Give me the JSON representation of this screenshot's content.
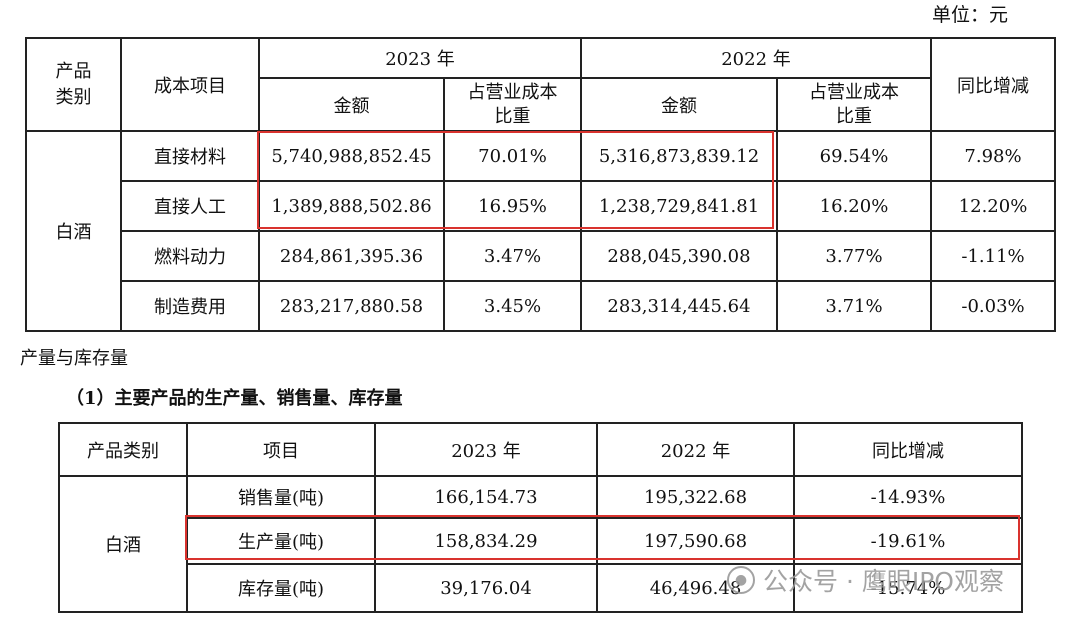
{
  "unit_label": "单位：元",
  "cost_table": {
    "header": {
      "category": "产品类别",
      "cost_item": "成本项目",
      "year_2023": "2023 年",
      "year_2022": "2022 年",
      "amount": "金额",
      "ratio": "占营业成本比重",
      "yoy": "同比增减"
    },
    "category": "白酒",
    "rows": [
      {
        "item": "直接材料",
        "amount_2023": "5,740,988,852.45",
        "ratio_2023": "70.01%",
        "amount_2022": "5,316,873,839.12",
        "ratio_2022": "69.54%",
        "yoy": "7.98%"
      },
      {
        "item": "直接人工",
        "amount_2023": "1,389,888,502.86",
        "ratio_2023": "16.95%",
        "amount_2022": "1,238,729,841.81",
        "ratio_2022": "16.20%",
        "yoy": "12.20%"
      },
      {
        "item": "燃料动力",
        "amount_2023": "284,861,395.36",
        "ratio_2023": "3.47%",
        "amount_2022": "288,045,390.08",
        "ratio_2022": "3.77%",
        "yoy": "-1.11%"
      },
      {
        "item": "制造费用",
        "amount_2023": "283,217,880.58",
        "ratio_2023": "3.45%",
        "amount_2022": "283,314,445.64",
        "ratio_2022": "3.71%",
        "yoy": "-0.03%"
      }
    ]
  },
  "section_title": "产量与库存量",
  "subsection_title": "（1）主要产品的生产量、销售量、库存量",
  "production_table": {
    "header": {
      "category": "产品类别",
      "item": "项目",
      "year_2023": "2023 年",
      "year_2022": "2022 年",
      "yoy": "同比增减"
    },
    "category": "白酒",
    "rows": [
      {
        "item": "销售量(吨)",
        "v2023": "166,154.73",
        "v2022": "195,322.68",
        "yoy": "-14.93%"
      },
      {
        "item": "生产量(吨)",
        "v2023": "158,834.29",
        "v2022": "197,590.68",
        "yoy": "-19.61%"
      },
      {
        "item": "库存量(吨)",
        "v2023": "39,176.04",
        "v2022": "46,496.48",
        "yoy": "-15.74%"
      }
    ]
  },
  "watermark": {
    "text": "公众号 · 鹰眼IPO观察",
    "icon": "wechat-icon"
  },
  "colors": {
    "highlight": "#d9332e",
    "border": "#222222"
  }
}
